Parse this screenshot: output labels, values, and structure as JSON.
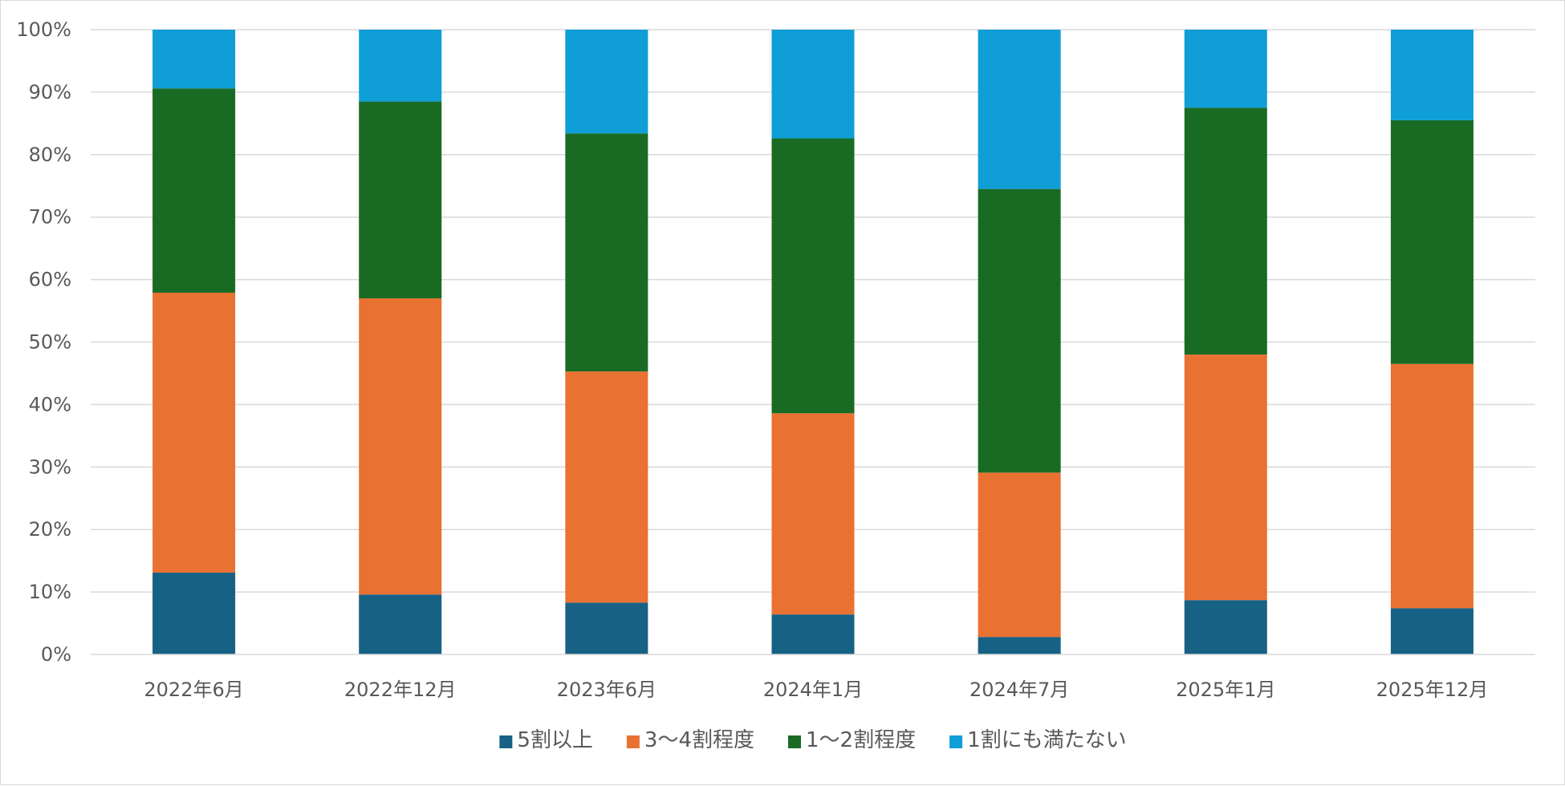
{
  "chart_data": {
    "type": "bar",
    "stacked": true,
    "percent_stacked": true,
    "categories": [
      "2022年6月",
      "2022年12月",
      "2023年6月",
      "2024年1月",
      "2024年7月",
      "2025年1月",
      "2025年12月"
    ],
    "series": [
      {
        "name": "5割以上",
        "color": "#176185",
        "values": [
          13.1,
          9.6,
          8.3,
          6.4,
          2.8,
          8.7,
          7.4
        ]
      },
      {
        "name": "3～4割程度",
        "color": "#E97132",
        "values": [
          44.8,
          47.4,
          37.0,
          32.2,
          26.3,
          39.3,
          39.1
        ]
      },
      {
        "name": "1～2割程度",
        "color": "#196B24",
        "values": [
          32.7,
          31.5,
          38.1,
          44.0,
          45.4,
          39.5,
          39.0
        ]
      },
      {
        "name": "1割にも満たない",
        "color": "#0F9ED5",
        "values": [
          9.4,
          11.5,
          16.6,
          17.4,
          25.5,
          12.5,
          14.5
        ]
      }
    ],
    "ylim": [
      0,
      100
    ],
    "yticks": [
      "0%",
      "10%",
      "20%",
      "30%",
      "40%",
      "50%",
      "60%",
      "70%",
      "80%",
      "90%",
      "100%"
    ],
    "grid": true,
    "legend_position": "bottom",
    "title": "",
    "xlabel": "",
    "ylabel": ""
  }
}
